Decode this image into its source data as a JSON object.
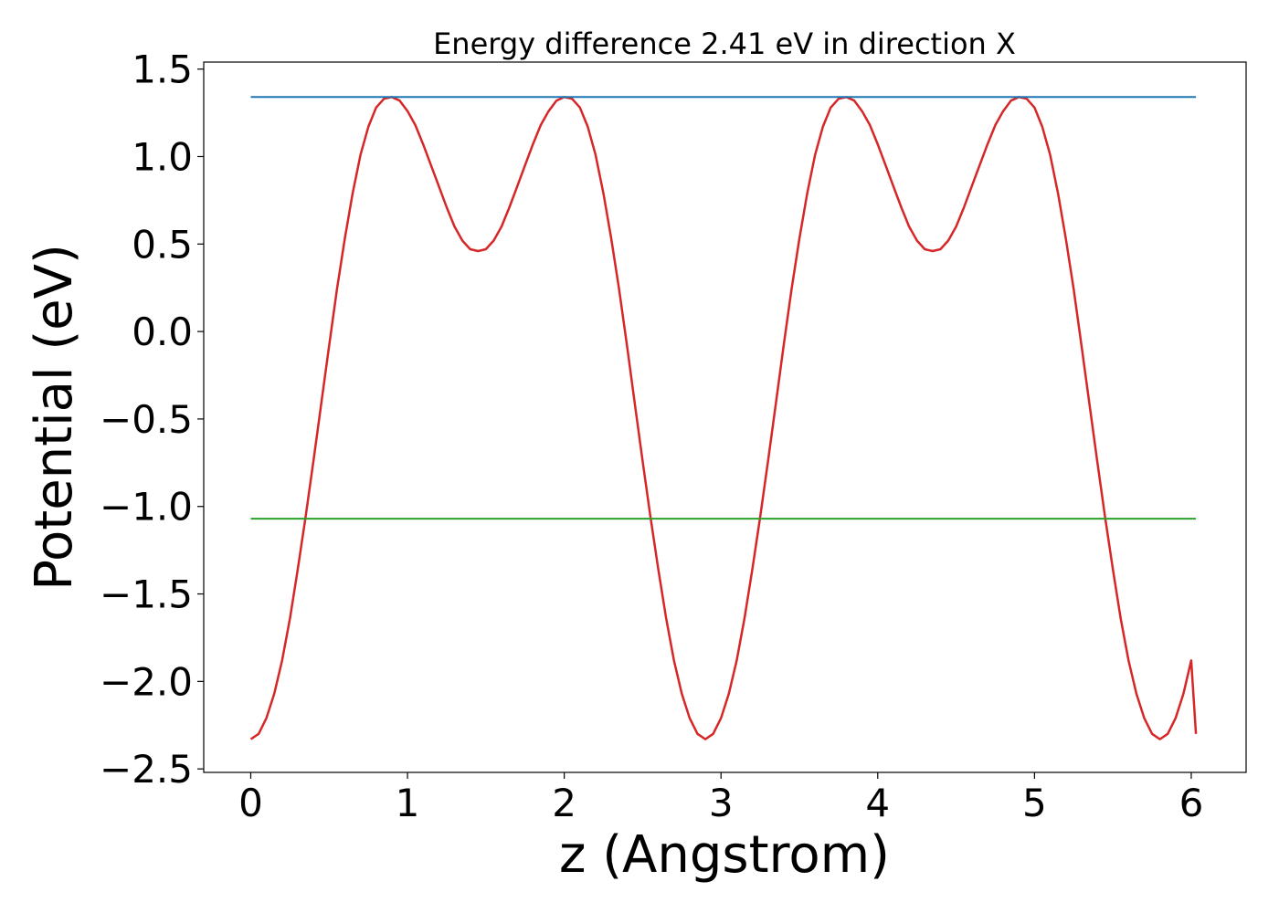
{
  "chart_data": {
    "type": "line",
    "title": "Energy difference 2.41 eV in direction X",
    "xlabel": "z (Angstrom)",
    "ylabel": "Potential (eV)",
    "xlim": [
      -0.3,
      6.35
    ],
    "ylim": [
      -2.52,
      1.54
    ],
    "xticks": [
      0,
      1,
      2,
      3,
      4,
      5,
      6
    ],
    "yticks": [
      1.5,
      1.0,
      0.5,
      0.0,
      -0.5,
      -1.0,
      -1.5,
      -2.0,
      -2.5
    ],
    "xtick_labels": [
      "0",
      "1",
      "2",
      "3",
      "4",
      "5",
      "6"
    ],
    "ytick_labels": [
      "1.5",
      "1.0",
      "0.5",
      "0.0",
      "−0.5",
      "−1.0",
      "−1.5",
      "−2.0",
      "−2.5"
    ],
    "grid": false,
    "legend": "none",
    "series": [
      {
        "color": "#d62728",
        "x": [
          0.0,
          0.05,
          0.1,
          0.15,
          0.2,
          0.25,
          0.3,
          0.35,
          0.4,
          0.45,
          0.5,
          0.55,
          0.6,
          0.65,
          0.7,
          0.75,
          0.8,
          0.85,
          0.9,
          0.95,
          1.0,
          1.05,
          1.1,
          1.15,
          1.2,
          1.25,
          1.3,
          1.35,
          1.4,
          1.45,
          1.5,
          1.55,
          1.6,
          1.65,
          1.7,
          1.75,
          1.8,
          1.85,
          1.9,
          1.95,
          2.0,
          2.05,
          2.1,
          2.15,
          2.2,
          2.25,
          2.3,
          2.35,
          2.4,
          2.45,
          2.5,
          2.55,
          2.6,
          2.65,
          2.7,
          2.75,
          2.8,
          2.85,
          2.9,
          2.95,
          3.0,
          3.05,
          3.1,
          3.15,
          3.2,
          3.25,
          3.3,
          3.35,
          3.4,
          3.45,
          3.5,
          3.55,
          3.6,
          3.65,
          3.7,
          3.75,
          3.8,
          3.85,
          3.9,
          3.95,
          4.0,
          4.05,
          4.1,
          4.15,
          4.2,
          4.25,
          4.3,
          4.35,
          4.4,
          4.45,
          4.5,
          4.55,
          4.6,
          4.65,
          4.7,
          4.75,
          4.8,
          4.85,
          4.9,
          4.95,
          5.0,
          5.05,
          5.1,
          5.15,
          5.2,
          5.25,
          5.3,
          5.35,
          5.4,
          5.45,
          5.5,
          5.55,
          5.6,
          5.65,
          5.7,
          5.75,
          5.8,
          5.85,
          5.9,
          5.95,
          6.0,
          6.03
        ],
        "y": [
          -2.33,
          -2.3,
          -2.21,
          -2.07,
          -1.88,
          -1.64,
          -1.36,
          -1.06,
          -0.74,
          -0.41,
          -0.08,
          0.24,
          0.53,
          0.79,
          1.01,
          1.17,
          1.28,
          1.33,
          1.34,
          1.32,
          1.26,
          1.18,
          1.07,
          0.95,
          0.83,
          0.71,
          0.6,
          0.52,
          0.47,
          0.46,
          0.47,
          0.52,
          0.6,
          0.71,
          0.83,
          0.95,
          1.07,
          1.18,
          1.26,
          1.32,
          1.34,
          1.33,
          1.28,
          1.17,
          1.01,
          0.79,
          0.53,
          0.24,
          -0.08,
          -0.41,
          -0.74,
          -1.06,
          -1.36,
          -1.64,
          -1.88,
          -2.07,
          -2.21,
          -2.3,
          -2.33,
          -2.3,
          -2.21,
          -2.07,
          -1.88,
          -1.64,
          -1.36,
          -1.06,
          -0.74,
          -0.41,
          -0.08,
          0.24,
          0.53,
          0.79,
          1.01,
          1.17,
          1.28,
          1.33,
          1.34,
          1.32,
          1.26,
          1.18,
          1.07,
          0.95,
          0.83,
          0.71,
          0.6,
          0.52,
          0.47,
          0.46,
          0.47,
          0.52,
          0.6,
          0.71,
          0.83,
          0.95,
          1.07,
          1.18,
          1.26,
          1.32,
          1.34,
          1.33,
          1.28,
          1.17,
          1.01,
          0.79,
          0.53,
          0.24,
          -0.08,
          -0.41,
          -0.74,
          -1.06,
          -1.36,
          -1.64,
          -1.88,
          -2.07,
          -2.21,
          -2.3,
          -2.33,
          -2.3,
          -2.21,
          -2.07,
          -1.88,
          -2.3
        ]
      },
      {
        "color": "#1f77b4",
        "x": [
          0.0,
          6.03
        ],
        "y": [
          1.34,
          1.34
        ]
      },
      {
        "color": "#2ca02c",
        "x": [
          0.0,
          6.03
        ],
        "y": [
          -1.07,
          -1.07
        ]
      }
    ]
  }
}
